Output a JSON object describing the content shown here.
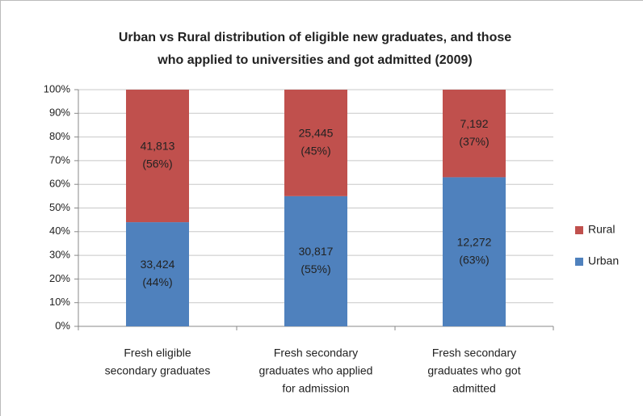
{
  "chart_data": {
    "type": "stacked_bar_100",
    "title": [
      "Urban vs Rural distribution of eligible new graduates, and those",
      "who applied to universities and got admitted (2009)"
    ],
    "categories": [
      [
        "Fresh eligible",
        "secondary graduates"
      ],
      [
        "Fresh secondary",
        "graduates who applied",
        "for admission"
      ],
      [
        "Fresh secondary",
        "graduates who got",
        "admitted"
      ]
    ],
    "series": [
      {
        "name": "Urban",
        "color": "#4f81bd",
        "values": [
          44,
          55,
          63
        ],
        "value_labels": [
          [
            "33,424",
            "(44%)"
          ],
          [
            "30,817",
            "(55%)"
          ],
          [
            "12,272",
            "(63%)"
          ]
        ]
      },
      {
        "name": "Rural",
        "color": "#c0504d",
        "values": [
          56,
          45,
          37
        ],
        "value_labels": [
          [
            "41,813",
            "(56%)"
          ],
          [
            "25,445",
            "(45%)"
          ],
          [
            "7,192",
            "(37%)"
          ]
        ]
      }
    ],
    "ylim": [
      0,
      100
    ],
    "yticks": [
      {
        "value": 0,
        "label": "0%"
      },
      {
        "value": 10,
        "label": "10%"
      },
      {
        "value": 20,
        "label": "20%"
      },
      {
        "value": 30,
        "label": "30%"
      },
      {
        "value": 40,
        "label": "40%"
      },
      {
        "value": 50,
        "label": "50%"
      },
      {
        "value": 60,
        "label": "60%"
      },
      {
        "value": 70,
        "label": "70%"
      },
      {
        "value": 80,
        "label": "80%"
      },
      {
        "value": 90,
        "label": "90%"
      },
      {
        "value": 100,
        "label": "100%"
      }
    ],
    "grid": true,
    "legend": "right"
  }
}
